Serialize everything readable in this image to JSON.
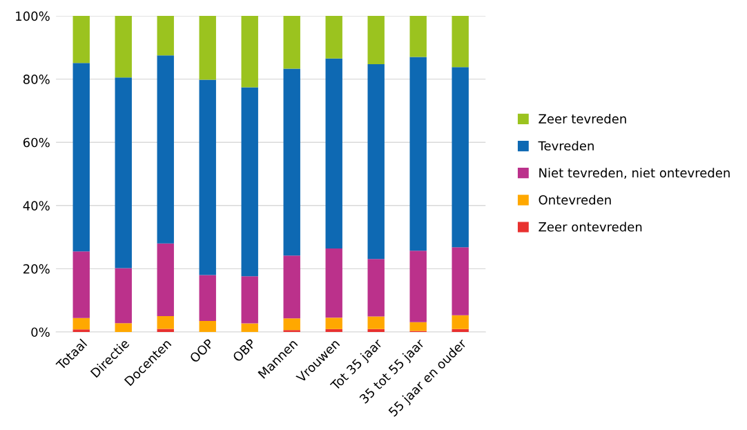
{
  "chart_data": {
    "type": "bar",
    "stacked": true,
    "categories": [
      "Totaal",
      "Directie",
      "Docenten",
      "OOP",
      "OBP",
      "Mannen",
      "Vrouwen",
      "Tot 35 jaar",
      "35 tot 55 jaar",
      "55 jaar en ouder"
    ],
    "series": [
      {
        "name": "Zeer ontevreden",
        "color": "#e8312f",
        "values": [
          0.8,
          0,
          1.0,
          0,
          0,
          0.6,
          0.9,
          0.9,
          0.3,
          0.9
        ]
      },
      {
        "name": "Ontevreden",
        "color": "#ffa800",
        "values": [
          3.6,
          2.8,
          4.0,
          3.5,
          2.7,
          3.7,
          3.6,
          4.0,
          2.8,
          4.4
        ]
      },
      {
        "name": "Niet tevreden, niet ontevreden",
        "color": "#bb318b",
        "values": [
          21.1,
          17.4,
          23.0,
          14.5,
          14.9,
          19.9,
          21.9,
          18.2,
          22.6,
          21.5
        ]
      },
      {
        "name": "Tevreden",
        "color": "#0e69b3",
        "values": [
          59.6,
          60.3,
          59.5,
          61.8,
          59.8,
          59.1,
          60.1,
          61.6,
          61.3,
          57.0
        ]
      },
      {
        "name": "Zeer tevreden",
        "color": "#9bc31f",
        "values": [
          14.9,
          19.5,
          12.5,
          20.2,
          22.6,
          16.7,
          13.5,
          15.3,
          13.0,
          16.2
        ]
      }
    ],
    "ylim": [
      0,
      100
    ],
    "yticks": [
      {
        "value": 0,
        "label": "0%"
      },
      {
        "value": 20,
        "label": "20%"
      },
      {
        "value": 40,
        "label": "40%"
      },
      {
        "value": 60,
        "label": "60%"
      },
      {
        "value": 80,
        "label": "80%"
      },
      {
        "value": 100,
        "label": "100%"
      }
    ],
    "grid": "y",
    "legend": "right"
  }
}
